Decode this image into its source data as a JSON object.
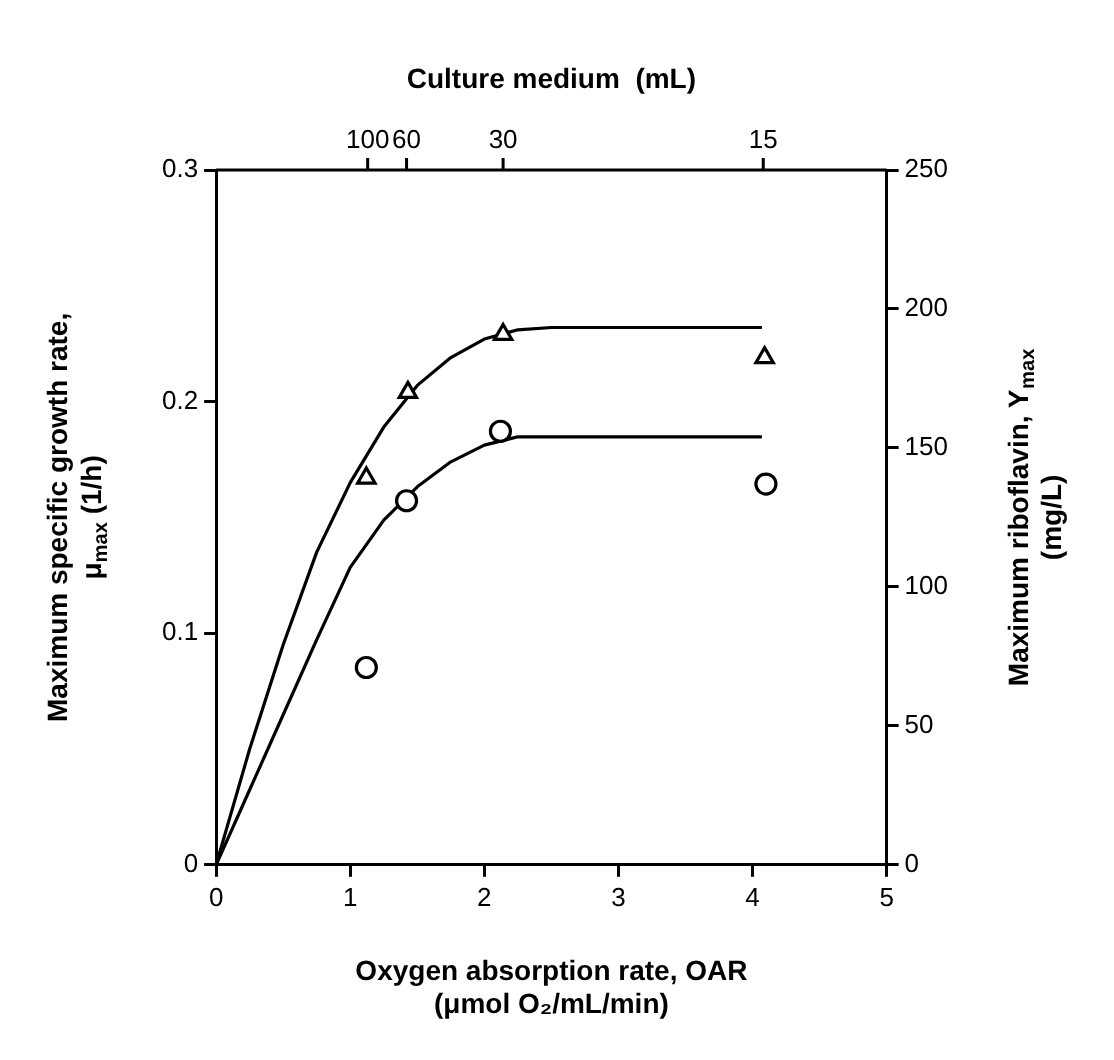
{
  "chart_data": {
    "type": "scatter",
    "xlabel": "Oxygen absorption rate, OAR\n(μmol O₂/mL/min)",
    "ylabel": "Maximum specific growth rate,\nμ$_{max}$ (1/h)",
    "y2label": "Maximum riboflavin, Y$_{max}$\n(mg/L)",
    "x2label": "Culture medium  (mL)",
    "xlim": [
      0,
      5
    ],
    "xticks": [
      0,
      1,
      2,
      3,
      4,
      5
    ],
    "ylim": [
      0,
      0.3
    ],
    "yticks": [
      0,
      0.1,
      0.2,
      0.3
    ],
    "y2lim": [
      0,
      250
    ],
    "y2ticks": [
      0,
      50,
      100,
      150,
      200,
      250
    ],
    "annotations": [
      {
        "text": "100",
        "x": 1.13
      },
      {
        "text": "60",
        "x": 1.42
      },
      {
        "text": "30",
        "x": 2.14
      },
      {
        "text": "15",
        "x": 4.08
      }
    ],
    "grid": false,
    "legend": false,
    "series": [
      {
        "type": "scatter",
        "marker": "triangle",
        "color": "#000000",
        "x": [
          1.12,
          1.43,
          2.14,
          4.09
        ],
        "values": [
          0.167,
          0.204,
          0.229,
          0.219
        ]
      },
      {
        "type": "scatter",
        "marker": "circle",
        "color": "#000000",
        "axis": "y2",
        "x": [
          1.12,
          1.42,
          2.12,
          4.1
        ],
        "values": [
          71,
          131,
          156,
          137
        ]
      },
      {
        "type": "line",
        "marker": "none",
        "color": "#000000",
        "x": [
          0,
          0.25,
          0.5,
          0.75,
          1,
          1.25,
          1.5,
          1.75,
          2,
          2.25,
          2.5,
          4.07
        ],
        "values": [
          0,
          0.05,
          0.095,
          0.135,
          0.165,
          0.189,
          0.207,
          0.219,
          0.227,
          0.231,
          0.232,
          0.232
        ]
      },
      {
        "type": "line",
        "marker": "none",
        "color": "#000000",
        "axis": "y2",
        "x": [
          0,
          0.25,
          0.5,
          0.75,
          1,
          1.25,
          1.5,
          1.75,
          2,
          2.25,
          2.5,
          4.07
        ],
        "values": [
          0,
          27,
          54,
          81,
          107,
          124,
          136,
          145,
          151,
          154,
          154,
          154
        ]
      }
    ]
  }
}
